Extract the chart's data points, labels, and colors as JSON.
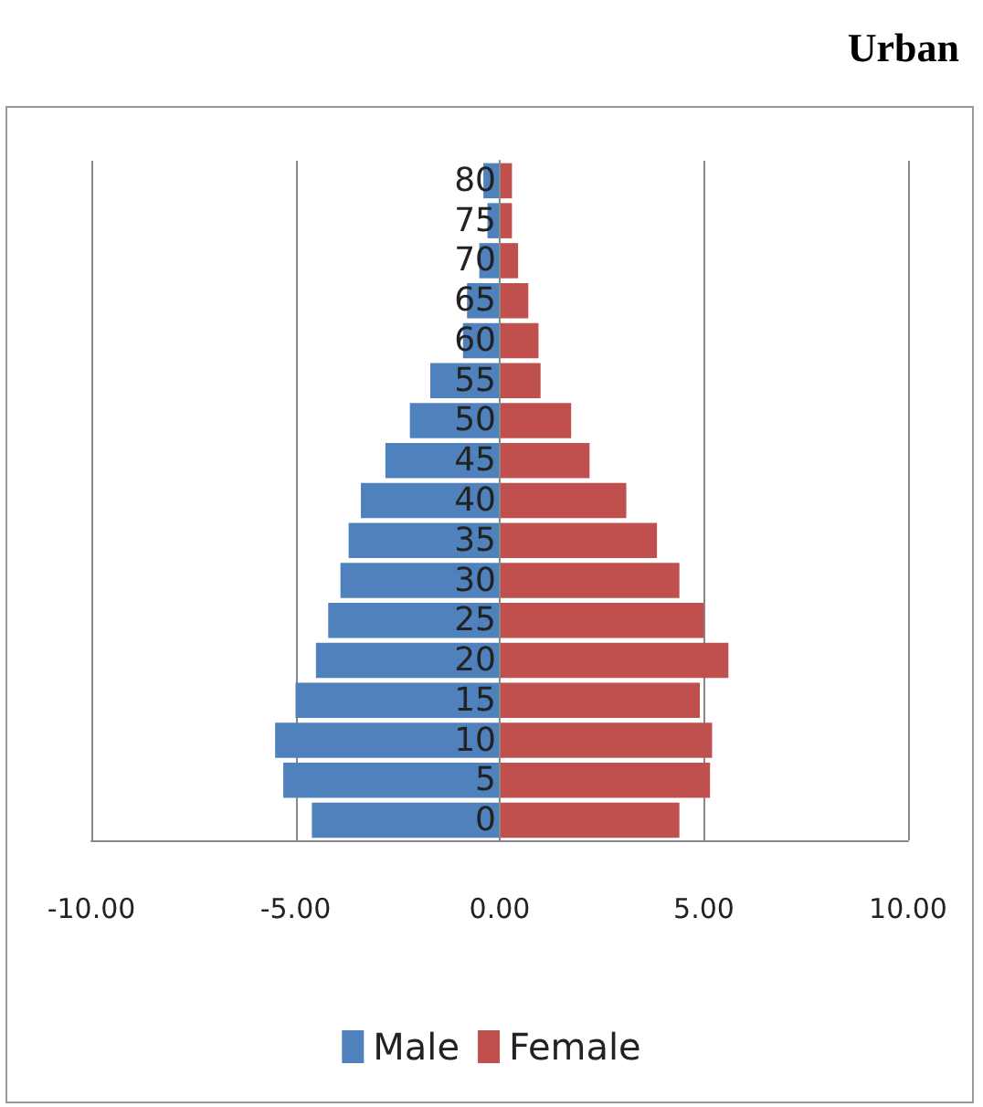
{
  "chart_data": {
    "type": "bar",
    "orientation": "horizontal",
    "stacked": true,
    "title": "Urban",
    "categories": [
      "80",
      "75",
      "70",
      "65",
      "60",
      "55",
      "50",
      "45",
      "40",
      "35",
      "30",
      "25",
      "20",
      "15",
      "10",
      "5",
      "0"
    ],
    "series": [
      {
        "name": "Male",
        "color": "#4f81bd",
        "values": [
          -0.4,
          -0.3,
          -0.5,
          -0.8,
          -0.9,
          -1.7,
          -2.2,
          -2.8,
          -3.4,
          -3.7,
          -3.9,
          -4.2,
          -4.5,
          -5.0,
          -5.5,
          -5.3,
          -4.6
        ]
      },
      {
        "name": "Female",
        "color": "#c0504d",
        "values": [
          0.3,
          0.3,
          0.45,
          0.7,
          0.95,
          1.0,
          1.75,
          2.2,
          3.1,
          3.85,
          4.4,
          5.0,
          5.6,
          4.9,
          5.2,
          5.15,
          4.4
        ]
      }
    ],
    "xlim": [
      -10,
      10
    ],
    "xticks": [
      {
        "value": -10,
        "label": "-10.00"
      },
      {
        "value": -5,
        "label": "-5.00"
      },
      {
        "value": 0,
        "label": "0.00"
      },
      {
        "value": 5,
        "label": "5.00"
      },
      {
        "value": 10,
        "label": "10.00"
      }
    ],
    "grid": "x",
    "legend": "bottom"
  }
}
